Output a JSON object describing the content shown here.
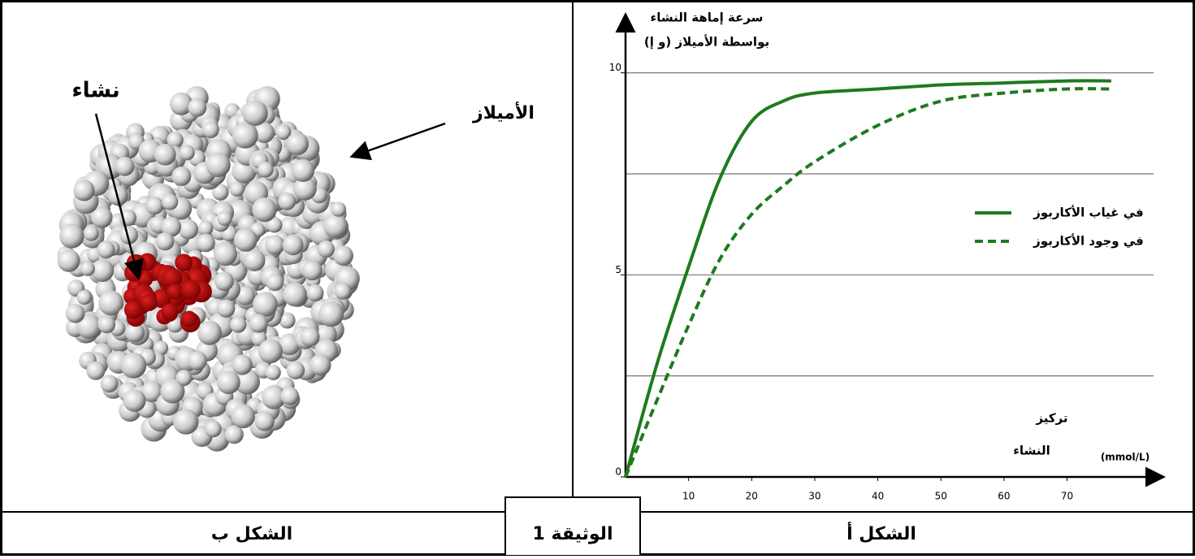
{
  "chart_data": {
    "type": "line",
    "y_label": [
      "سرعة إماهة النشاء",
      "بواسطة الأميلاز (و إ)"
    ],
    "x_label": [
      "تركيز",
      "النشاء",
      "(mmol/L)"
    ],
    "x": [
      0,
      5,
      10,
      15,
      20,
      25,
      30,
      40,
      50,
      60,
      70,
      77
    ],
    "series": [
      {
        "name": "في غياب الأكاربوز",
        "color": "#1e7a1e",
        "dash": false,
        "values": [
          0,
          2.8,
          5.2,
          7.4,
          8.8,
          9.3,
          9.5,
          9.6,
          9.7,
          9.75,
          9.8,
          9.8
        ]
      },
      {
        "name": "في وجود الأكاربوز",
        "color": "#1e7a1e",
        "dash": true,
        "values": [
          0,
          1.9,
          3.75,
          5.4,
          6.5,
          7.2,
          7.8,
          8.7,
          9.3,
          9.5,
          9.6,
          9.6
        ]
      }
    ],
    "xlim": [
      0,
      85
    ],
    "ylim": [
      0,
      11.4
    ],
    "xticks": [
      10,
      20,
      30,
      40,
      50,
      60,
      70
    ],
    "yticks": [
      0,
      5,
      10
    ],
    "ygrid": [
      2.5,
      5,
      7.5,
      10
    ]
  },
  "figure_b": {
    "label_starch": "نشاء",
    "label_amylase": "الأميلاز"
  },
  "footer": {
    "left": "الشكل ب",
    "middle": "الوثيقة 1",
    "right": "الشكل أ"
  }
}
